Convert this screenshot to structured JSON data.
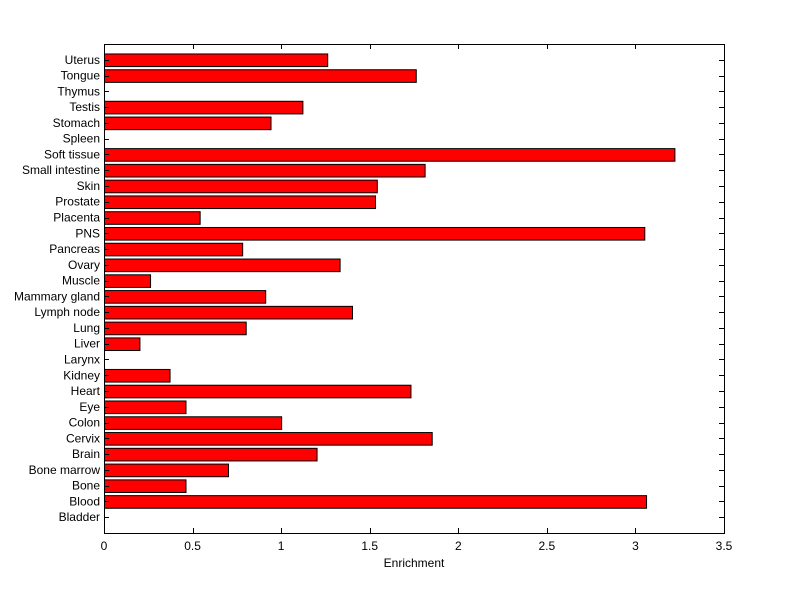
{
  "chart_data": {
    "type": "bar",
    "orientation": "horizontal",
    "categories": [
      "Bladder",
      "Blood",
      "Bone",
      "Bone marrow",
      "Brain",
      "Cervix",
      "Colon",
      "Eye",
      "Heart",
      "Kidney",
      "Larynx",
      "Liver",
      "Lung",
      "Lymph node",
      "Mammary gland",
      "Muscle",
      "Ovary",
      "Pancreas",
      "PNS",
      "Placenta",
      "Prostate",
      "Skin",
      "Small intestine",
      "Soft tissue",
      "Spleen",
      "Stomach",
      "Testis",
      "Thymus",
      "Tongue",
      "Uterus"
    ],
    "values": [
      0,
      3.06,
      0.46,
      0.7,
      1.2,
      1.85,
      1.0,
      0.46,
      1.73,
      0.37,
      0,
      0.2,
      0.8,
      1.4,
      0.91,
      0.26,
      1.33,
      0.78,
      3.05,
      0.54,
      1.53,
      1.54,
      1.81,
      3.22,
      0,
      0.94,
      1.12,
      0,
      1.76,
      1.26
    ],
    "xlabel": "Enrichment",
    "ylabel": "",
    "title": "",
    "xlim": [
      0,
      3.5
    ],
    "xticks": [
      0,
      0.5,
      1,
      1.5,
      2,
      2.5,
      3,
      3.5
    ],
    "xtick_labels": [
      "0",
      "0.5",
      "1",
      "1.5",
      "2",
      "2.5",
      "3",
      "3.5"
    ],
    "grid": false,
    "bar_color": "#ff0000",
    "bar_edge_color": "#000000"
  }
}
